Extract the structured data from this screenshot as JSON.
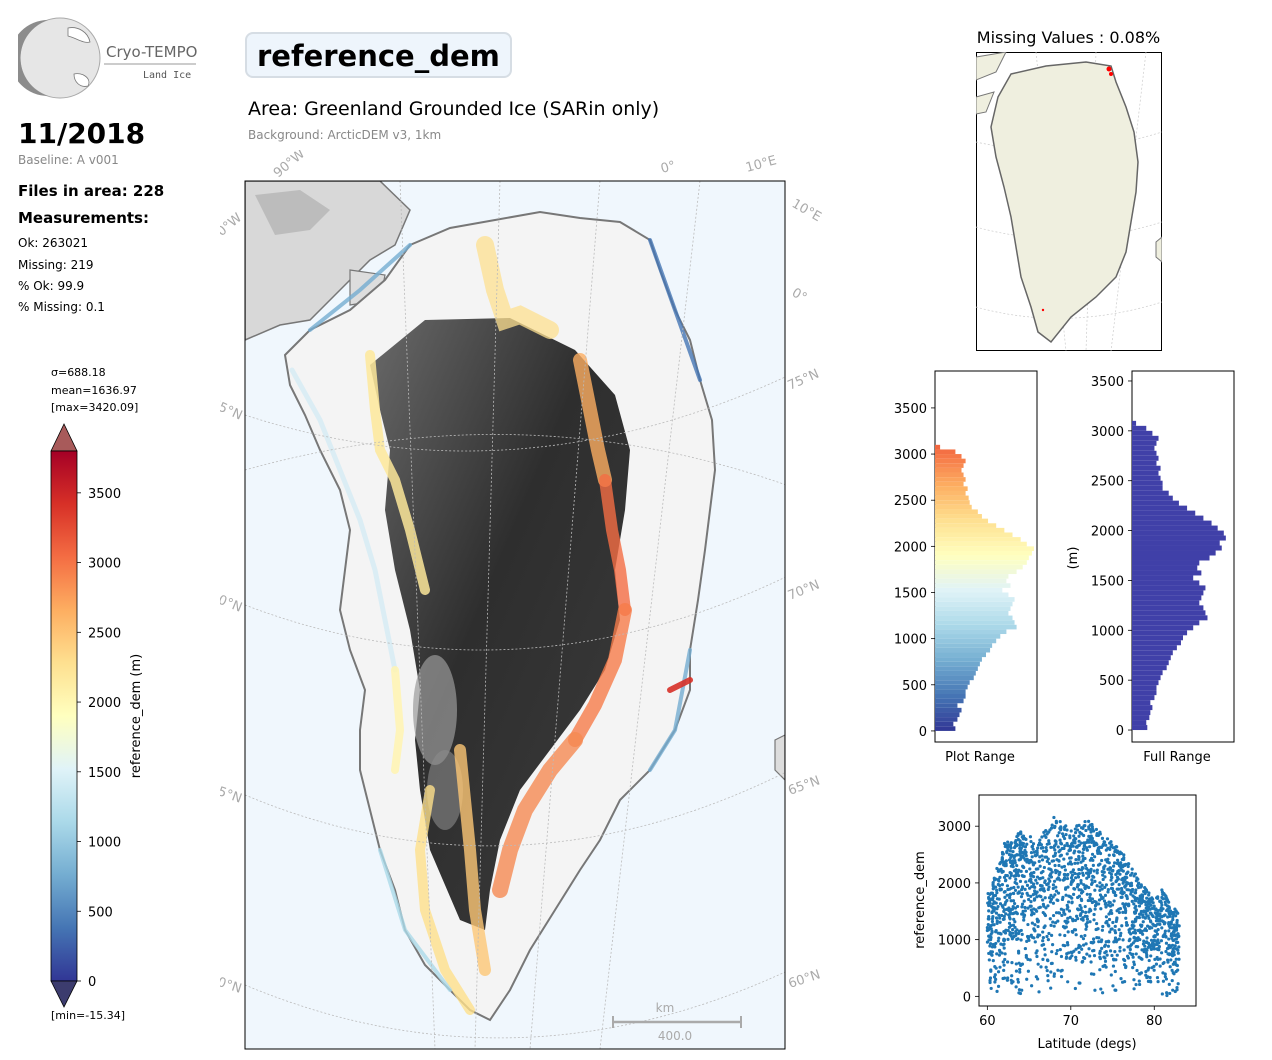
{
  "header": {
    "logo_title": "Cryo-TEMPO",
    "logo_subtitle": "Land Ice",
    "date": "11/2018",
    "baseline": "Baseline: A v001",
    "files_in_area": "Files in area: 228",
    "measurements_heading": "Measurements:",
    "stats": {
      "ok": "Ok: 263021",
      "missing": "Missing: 219",
      "pct_ok": "% Ok: 99.9",
      "pct_missing": "% Missing: 0.1"
    }
  },
  "main": {
    "parameter": "reference_dem",
    "area": "Area: Greenland Grounded Ice (SARin only)",
    "background": "Background: ArcticDEM v3, 1km"
  },
  "colorbar": {
    "sigma": "σ=688.18",
    "mean": "mean=1636.97",
    "max": "[max=3420.09]",
    "min": "[min=-15.34]",
    "label": "reference_dem (m)",
    "ticks": [
      "0",
      "500",
      "1000",
      "1500",
      "2000",
      "2500",
      "3000",
      "3500"
    ],
    "range": [
      0,
      3800
    ]
  },
  "map": {
    "lat_labels": [
      "60°N",
      "65°N",
      "70°N",
      "75°N"
    ],
    "lat_labels_right": [
      "60°N",
      "65°N",
      "70°N",
      "75°N"
    ],
    "lon_labels": [
      "90°W",
      "90°W",
      "0°",
      "10°E",
      "10°E",
      "0°"
    ],
    "scale_unit": "km",
    "scale_value": "400.0",
    "colors": {
      "ocean": "#f0f7fd",
      "coast": "#777777",
      "graticule": "#bbbbbb"
    }
  },
  "inset": {
    "title": "Missing Values : 0.08%",
    "colors": {
      "land": "#efefdf",
      "missing": "#ff0000"
    }
  },
  "chart_data": [
    {
      "type": "bar",
      "orientation": "horizontal",
      "xlabel": "Plot Range",
      "ylabel": "",
      "yticks": [
        "0",
        "500",
        "1000",
        "1500",
        "2000",
        "2500",
        "3000",
        "3500"
      ],
      "ylim": [
        -120,
        3900
      ],
      "bin_width": 50,
      "bin_starts": [
        0,
        50,
        100,
        150,
        200,
        250,
        300,
        350,
        400,
        450,
        500,
        550,
        600,
        650,
        700,
        750,
        800,
        850,
        900,
        950,
        1000,
        1050,
        1100,
        1150,
        1200,
        1250,
        1300,
        1350,
        1400,
        1450,
        1500,
        1550,
        1600,
        1650,
        1700,
        1750,
        1800,
        1850,
        1900,
        1950,
        2000,
        2050,
        2100,
        2150,
        2200,
        2250,
        2300,
        2350,
        2400,
        2450,
        2500,
        2550,
        2600,
        2650,
        2700,
        2750,
        2800,
        2850,
        2900,
        2950,
        3000,
        3050
      ],
      "values": [
        0.2,
        0.18,
        0.22,
        0.24,
        0.26,
        0.22,
        0.28,
        0.3,
        0.3,
        0.32,
        0.34,
        0.38,
        0.4,
        0.42,
        0.44,
        0.46,
        0.5,
        0.54,
        0.56,
        0.6,
        0.64,
        0.7,
        0.8,
        0.78,
        0.76,
        0.72,
        0.74,
        0.76,
        0.78,
        0.72,
        0.66,
        0.74,
        0.7,
        0.72,
        0.8,
        0.86,
        0.9,
        0.92,
        0.95,
        0.97,
        0.9,
        0.84,
        0.76,
        0.68,
        0.6,
        0.52,
        0.46,
        0.42,
        0.36,
        0.34,
        0.33,
        0.3,
        0.32,
        0.28,
        0.3,
        0.28,
        0.26,
        0.28,
        0.3,
        0.26,
        0.2,
        0.05
      ],
      "colors": {
        "cmap": [
          "#313695",
          "#4575b4",
          "#74add1",
          "#abd9e9",
          "#e0f3f8",
          "#ffffbf",
          "#fee090",
          "#fdae61",
          "#f46d43",
          "#d73027",
          "#a50026"
        ]
      }
    },
    {
      "type": "bar",
      "orientation": "horizontal",
      "xlabel": "Full Range",
      "ylabel": "(m)",
      "yticks": [
        "0",
        "500",
        "1000",
        "1500",
        "2000",
        "2500",
        "3000",
        "3500"
      ],
      "ylim": [
        -120,
        3600
      ],
      "bin_width": 50,
      "bin_starts": [
        0,
        50,
        100,
        150,
        200,
        250,
        300,
        350,
        400,
        450,
        500,
        550,
        600,
        650,
        700,
        750,
        800,
        850,
        900,
        950,
        1000,
        1050,
        1100,
        1150,
        1200,
        1250,
        1300,
        1350,
        1400,
        1450,
        1500,
        1550,
        1600,
        1650,
        1700,
        1750,
        1800,
        1850,
        1900,
        1950,
        2000,
        2050,
        2100,
        2150,
        2200,
        2250,
        2300,
        2350,
        2400,
        2450,
        2500,
        2550,
        2600,
        2650,
        2700,
        2750,
        2800,
        2850,
        2900,
        2950,
        3000,
        3050
      ],
      "values": [
        0.15,
        0.14,
        0.17,
        0.18,
        0.2,
        0.18,
        0.22,
        0.24,
        0.24,
        0.26,
        0.28,
        0.3,
        0.34,
        0.36,
        0.38,
        0.4,
        0.44,
        0.48,
        0.5,
        0.54,
        0.6,
        0.66,
        0.74,
        0.72,
        0.7,
        0.66,
        0.68,
        0.7,
        0.72,
        0.66,
        0.6,
        0.68,
        0.64,
        0.66,
        0.76,
        0.82,
        0.88,
        0.86,
        0.92,
        0.9,
        0.84,
        0.78,
        0.7,
        0.62,
        0.54,
        0.46,
        0.4,
        0.36,
        0.3,
        0.3,
        0.28,
        0.26,
        0.28,
        0.24,
        0.26,
        0.24,
        0.22,
        0.24,
        0.26,
        0.2,
        0.14,
        0.04
      ],
      "colors": {
        "bar": "#4040a8"
      }
    },
    {
      "type": "scatter",
      "xlabel": "Latitude (degs)",
      "ylabel": "reference_dem",
      "xticks": [
        "60",
        "70",
        "80"
      ],
      "yticks": [
        "0",
        "1000",
        "2000",
        "3000"
      ],
      "xlim": [
        59,
        85
      ],
      "ylim": [
        -170,
        3550
      ],
      "envelope": {
        "lat": [
          60,
          61,
          62,
          63,
          64,
          65,
          66,
          67,
          68,
          69,
          70,
          71,
          72,
          73,
          74,
          75,
          76,
          77,
          78,
          79,
          80,
          81,
          82,
          83
        ],
        "max_dem": [
          1800,
          2200,
          2700,
          2850,
          2900,
          2850,
          2700,
          2950,
          3200,
          3050,
          2950,
          3050,
          3100,
          3000,
          2850,
          2700,
          2600,
          2350,
          2100,
          1900,
          1700,
          1900,
          1600,
          1500
        ]
      },
      "colors": {
        "points": "#1f77b4"
      }
    }
  ]
}
